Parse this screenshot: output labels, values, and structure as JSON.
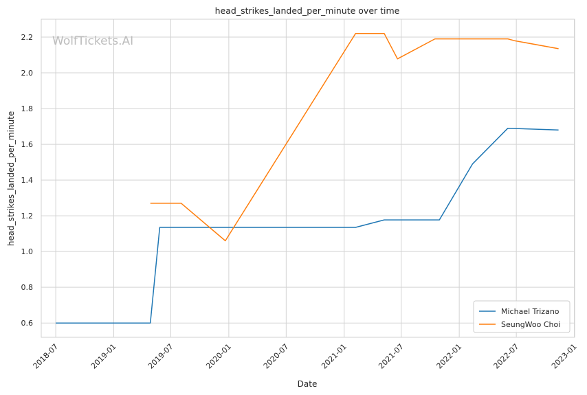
{
  "chart_data": {
    "type": "line",
    "title": "head_strikes_landed_per_minute over time",
    "xlabel": "Date",
    "ylabel": "head_strikes_landed_per_minute",
    "watermark": "WolfTickets.AI",
    "grid": true,
    "legend_position": "bottom-right",
    "x_axis": {
      "type": "date",
      "range": [
        "2018-05-16",
        "2023-01-02"
      ],
      "ticks": [
        "2018-07",
        "2019-01",
        "2019-07",
        "2020-01",
        "2020-07",
        "2021-01",
        "2021-07",
        "2022-01",
        "2022-07",
        "2023-01"
      ]
    },
    "y_axis": {
      "range": [
        0.52,
        2.3
      ],
      "ticks": [
        "0.6",
        "0.8",
        "1.0",
        "1.2",
        "1.4",
        "1.6",
        "1.8",
        "2.0",
        "2.2"
      ]
    },
    "series": [
      {
        "name": "Michael Trizano",
        "color": "#1f77b4",
        "points": [
          {
            "x": "2018-07-01",
            "y": 0.6
          },
          {
            "x": "2019-04-27",
            "y": 0.6
          },
          {
            "x": "2019-05-27",
            "y": 1.135
          },
          {
            "x": "2021-02-06",
            "y": 1.135
          },
          {
            "x": "2021-05-08",
            "y": 1.177
          },
          {
            "x": "2021-10-30",
            "y": 1.177
          },
          {
            "x": "2022-02-12",
            "y": 1.49
          },
          {
            "x": "2022-06-04",
            "y": 1.69
          },
          {
            "x": "2022-11-12",
            "y": 1.68
          }
        ]
      },
      {
        "name": "SeungWoo Choi",
        "color": "#ff7f0e",
        "points": [
          {
            "x": "2019-04-27",
            "y": 1.27
          },
          {
            "x": "2019-08-03",
            "y": 1.27
          },
          {
            "x": "2019-12-21",
            "y": 1.06
          },
          {
            "x": "2021-02-06",
            "y": 2.22
          },
          {
            "x": "2021-05-08",
            "y": 2.22
          },
          {
            "x": "2021-06-19",
            "y": 2.078
          },
          {
            "x": "2021-10-16",
            "y": 2.19
          },
          {
            "x": "2022-06-04",
            "y": 2.19
          },
          {
            "x": "2022-06-25",
            "y": 2.18
          },
          {
            "x": "2022-11-12",
            "y": 2.135
          }
        ]
      }
    ]
  }
}
